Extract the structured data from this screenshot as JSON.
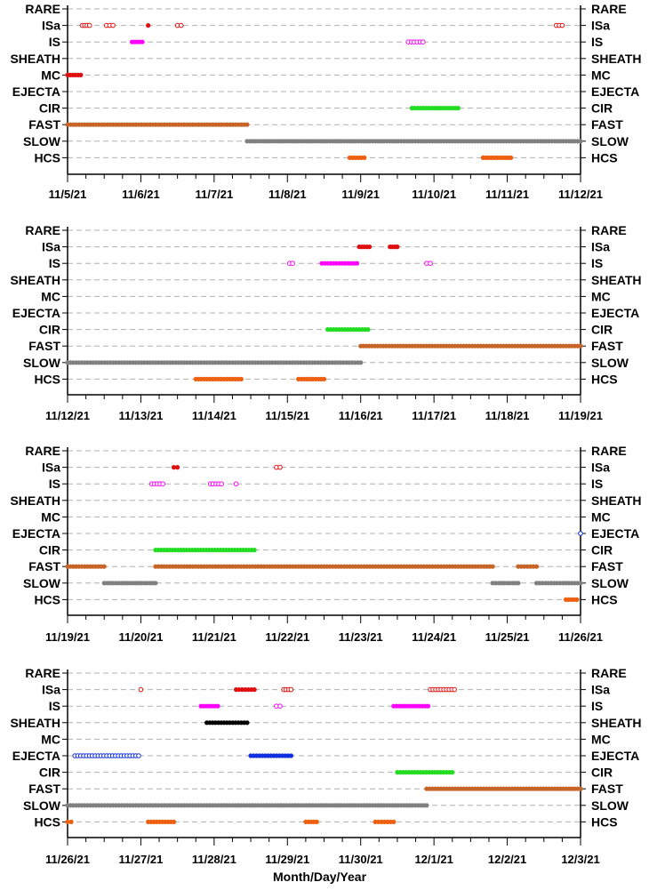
{
  "chart_data": {
    "type": "scatter",
    "xlabel": "Month/Day/Year",
    "categories": [
      "RARE",
      "ISa",
      "IS",
      "SHEATH",
      "MC",
      "EJECTA",
      "CIR",
      "FAST",
      "SLOW",
      "HCS"
    ],
    "panels": [
      {
        "x_ticks": [
          "11/5/21",
          "11/6/21",
          "11/7/21",
          "11/8/21",
          "11/9/21",
          "11/10/21",
          "11/11/21",
          "11/12/21"
        ],
        "x_range_days": [
          0,
          7
        ],
        "series": [
          {
            "category": "ISa",
            "color": "#e01010",
            "intervals": [
              [
                0.2,
                0.3,
                "open"
              ],
              [
                0.53,
                0.62,
                "open"
              ],
              [
                1.1,
                1.1,
                "filled"
              ],
              [
                1.5,
                1.55,
                "open"
              ],
              [
                6.67,
                6.75,
                "open"
              ]
            ]
          },
          {
            "category": "IS",
            "color": "#ff00ff",
            "intervals": [
              [
                0.88,
                1.02,
                "filled"
              ],
              [
                4.65,
                4.85,
                "open"
              ]
            ]
          },
          {
            "category": "MC",
            "color": "#e01010",
            "intervals": [
              [
                0.0,
                0.18,
                "filled"
              ]
            ]
          },
          {
            "category": "CIR",
            "color": "#22dd22",
            "intervals": [
              [
                4.7,
                5.33,
                "filled"
              ]
            ]
          },
          {
            "category": "FAST",
            "color": "#c86428",
            "intervals": [
              [
                0.0,
                2.45,
                "filled"
              ]
            ]
          },
          {
            "category": "SLOW",
            "color": "#808080",
            "intervals": [
              [
                2.45,
                7.0,
                "filled"
              ]
            ]
          },
          {
            "category": "HCS",
            "color": "#ee6010",
            "intervals": [
              [
                3.85,
                4.05,
                "filled"
              ],
              [
                5.67,
                6.05,
                "filled"
              ]
            ]
          }
        ]
      },
      {
        "x_ticks": [
          "11/12/21",
          "11/13/21",
          "11/14/21",
          "11/15/21",
          "11/16/21",
          "11/17/21",
          "11/18/21",
          "11/19/21"
        ],
        "x_range_days": [
          0,
          7
        ],
        "series": [
          {
            "category": "ISa",
            "color": "#e01010",
            "intervals": [
              [
                3.98,
                4.12,
                "filled"
              ],
              [
                4.4,
                4.5,
                "filled"
              ]
            ]
          },
          {
            "category": "IS",
            "color": "#ff00ff",
            "intervals": [
              [
                3.03,
                3.07,
                "open"
              ],
              [
                3.47,
                3.95,
                "filled"
              ],
              [
                4.9,
                4.95,
                "open"
              ]
            ]
          },
          {
            "category": "CIR",
            "color": "#22dd22",
            "intervals": [
              [
                3.55,
                4.1,
                "filled"
              ]
            ]
          },
          {
            "category": "FAST",
            "color": "#c86428",
            "intervals": [
              [
                4.0,
                7.0,
                "filled"
              ]
            ]
          },
          {
            "category": "SLOW",
            "color": "#808080",
            "intervals": [
              [
                0.0,
                4.0,
                "filled"
              ]
            ]
          },
          {
            "category": "HCS",
            "color": "#ee6010",
            "intervals": [
              [
                1.75,
                2.37,
                "filled"
              ],
              [
                3.15,
                3.5,
                "filled"
              ]
            ]
          }
        ]
      },
      {
        "x_ticks": [
          "11/19/21",
          "11/20/21",
          "11/21/21",
          "11/22/21",
          "11/23/21",
          "11/24/21",
          "11/25/21",
          "11/26/21"
        ],
        "x_range_days": [
          0,
          7
        ],
        "series": [
          {
            "category": "ISa",
            "color": "#e01010",
            "intervals": [
              [
                1.45,
                1.5,
                "filled"
              ],
              [
                2.85,
                2.9,
                "open"
              ]
            ]
          },
          {
            "category": "IS",
            "color": "#ff00ff",
            "intervals": [
              [
                1.15,
                1.3,
                "open"
              ],
              [
                1.95,
                2.1,
                "open"
              ],
              [
                2.3,
                2.3,
                "open"
              ]
            ]
          },
          {
            "category": "EJECTA",
            "color": "#1030e0",
            "intervals": [
              [
                7.0,
                7.0,
                "open"
              ]
            ]
          },
          {
            "category": "CIR",
            "color": "#22dd22",
            "intervals": [
              [
                1.2,
                2.55,
                "filled"
              ]
            ]
          },
          {
            "category": "FAST",
            "color": "#c86428",
            "intervals": [
              [
                0.0,
                0.5,
                "filled"
              ],
              [
                1.2,
                5.8,
                "filled"
              ],
              [
                6.15,
                6.4,
                "filled"
              ]
            ]
          },
          {
            "category": "SLOW",
            "color": "#808080",
            "intervals": [
              [
                0.5,
                1.2,
                "filled"
              ],
              [
                5.8,
                6.15,
                "filled"
              ],
              [
                6.4,
                7.0,
                "filled"
              ]
            ]
          },
          {
            "category": "HCS",
            "color": "#ee6010",
            "intervals": [
              [
                6.8,
                6.95,
                "filled"
              ]
            ]
          }
        ]
      },
      {
        "x_ticks": [
          "11/26/21",
          "11/27/21",
          "11/28/21",
          "11/29/21",
          "11/30/21",
          "12/1/21",
          "12/2/21",
          "12/3/21"
        ],
        "x_range_days": [
          0,
          7
        ],
        "series": [
          {
            "category": "ISa",
            "color": "#e01010",
            "intervals": [
              [
                1.0,
                1.0,
                "open"
              ],
              [
                2.3,
                2.55,
                "filled"
              ],
              [
                2.95,
                3.05,
                "open"
              ],
              [
                4.95,
                5.28,
                "open"
              ]
            ]
          },
          {
            "category": "IS",
            "color": "#ff00ff",
            "intervals": [
              [
                1.82,
                2.05,
                "filled"
              ],
              [
                2.85,
                2.9,
                "open"
              ],
              [
                4.45,
                4.92,
                "filled"
              ]
            ]
          },
          {
            "category": "SHEATH",
            "color": "#000000",
            "intervals": [
              [
                1.9,
                2.45,
                "filled"
              ]
            ]
          },
          {
            "category": "EJECTA",
            "color": "#1030e0",
            "intervals": [
              [
                0.1,
                0.97,
                "open"
              ],
              [
                2.5,
                3.05,
                "filled"
              ]
            ]
          },
          {
            "category": "CIR",
            "color": "#22dd22",
            "intervals": [
              [
                4.5,
                5.25,
                "filled"
              ]
            ]
          },
          {
            "category": "FAST",
            "color": "#c86428",
            "intervals": [
              [
                4.9,
                7.0,
                "filled"
              ]
            ]
          },
          {
            "category": "SLOW",
            "color": "#808080",
            "intervals": [
              [
                0.0,
                4.9,
                "filled"
              ]
            ]
          },
          {
            "category": "HCS",
            "color": "#ee6010",
            "intervals": [
              [
                0.0,
                0.05,
                "filled"
              ],
              [
                1.1,
                1.45,
                "filled"
              ],
              [
                3.25,
                3.4,
                "filled"
              ],
              [
                4.2,
                4.45,
                "filled"
              ]
            ]
          }
        ]
      }
    ],
    "grid": "dashed horizontal",
    "legend": "none"
  }
}
